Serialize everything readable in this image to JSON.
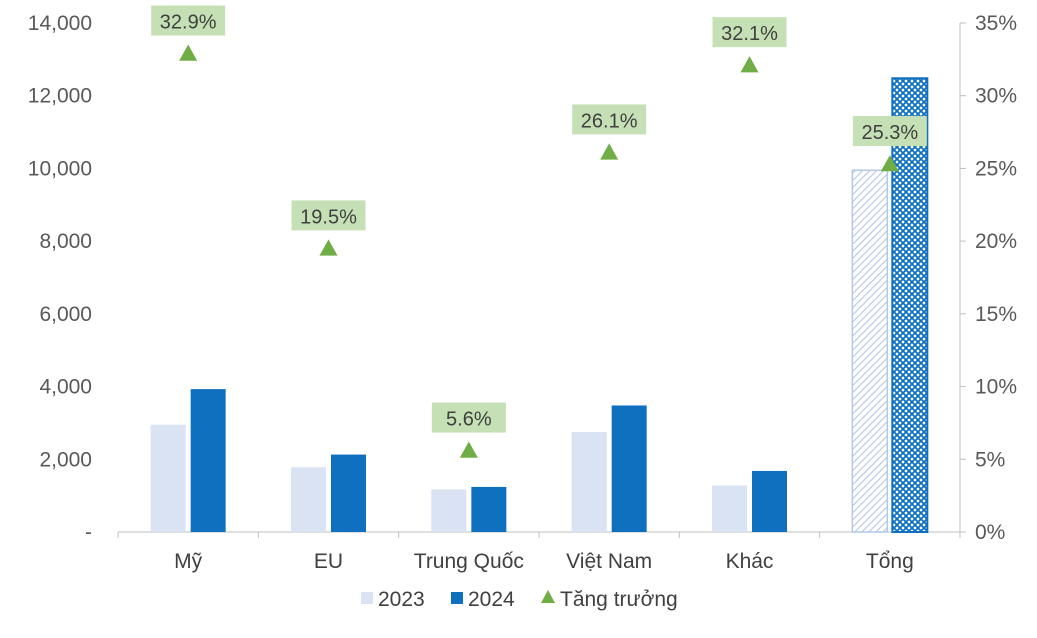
{
  "chart_data": {
    "type": "bar",
    "categories": [
      "Mỹ",
      "EU",
      "Trung Quốc",
      "Việt Nam",
      "Khác",
      "Tổng"
    ],
    "series": [
      {
        "name": "2023",
        "type": "bar",
        "axis": "left",
        "values": [
          2950,
          1780,
          1170,
          2750,
          1280,
          9950
        ]
      },
      {
        "name": "2024",
        "type": "bar",
        "axis": "left",
        "values": [
          3930,
          2130,
          1240,
          3480,
          1680,
          12480
        ]
      },
      {
        "name": "Tăng trưởng",
        "type": "marker",
        "axis": "right",
        "values": [
          32.9,
          19.5,
          5.6,
          26.1,
          32.1,
          25.3
        ]
      }
    ],
    "data_labels": [
      "32.9%",
      "19.5%",
      "5.6%",
      "26.1%",
      "32.1%",
      "25.3%"
    ],
    "left_axis": {
      "range": [
        0,
        14000
      ],
      "ticks": [
        "-",
        "2,000",
        "4,000",
        "6,000",
        "8,000",
        "10,000",
        "12,000",
        "14,000"
      ]
    },
    "right_axis": {
      "range": [
        0,
        35
      ],
      "ticks": [
        "0%",
        "5%",
        "10%",
        "15%",
        "20%",
        "25%",
        "30%",
        "35%"
      ]
    },
    "legend_position": "bottom",
    "grid": false,
    "colors": {
      "2023": "#dae3f3",
      "2024": "#0f70c0",
      "growth": "#70ad47",
      "label_bg": "#c5e0b4",
      "axis": "#bfbfbf"
    },
    "highlighted_category_pattern": "Tổng"
  }
}
